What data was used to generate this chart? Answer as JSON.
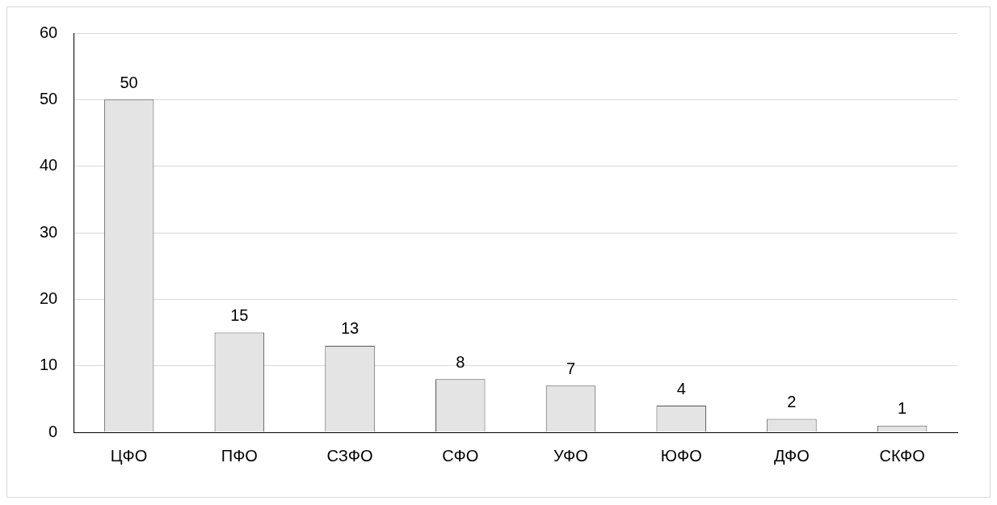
{
  "chart_data": {
    "type": "bar",
    "categories": [
      "ЦФО",
      "ПФО",
      "СЗФО",
      "СФО",
      "УФО",
      "ЮФО",
      "ДФО",
      "СКФО"
    ],
    "values": [
      50,
      15,
      13,
      8,
      7,
      4,
      2,
      1
    ],
    "color": "#e4e4e4",
    "ylim": [
      0,
      60
    ],
    "yticks": [
      0,
      10,
      20,
      30,
      40,
      50,
      60
    ],
    "grid": "y",
    "data_labels": true,
    "legend": false
  }
}
